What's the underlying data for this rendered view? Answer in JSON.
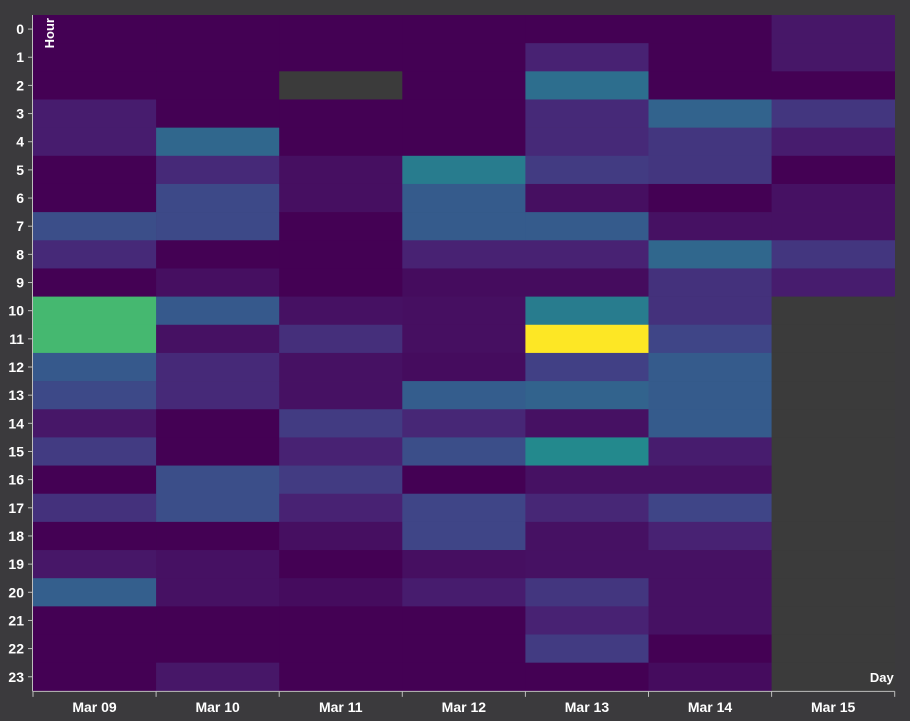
{
  "chart_data": {
    "type": "heatmap",
    "xlabel": "Day",
    "ylabel": "Hour",
    "x_categories": [
      "Mar 09",
      "Mar 10",
      "Mar 11",
      "Mar 12",
      "Mar 13",
      "Mar 14",
      "Mar 15"
    ],
    "y_categories": [
      "0",
      "1",
      "2",
      "3",
      "4",
      "5",
      "6",
      "7",
      "8",
      "9",
      "10",
      "11",
      "12",
      "13",
      "14",
      "15",
      "16",
      "17",
      "18",
      "19",
      "20",
      "21",
      "22",
      "23"
    ],
    "colorscale": "viridis",
    "value_range": [
      0,
      1
    ],
    "missing_color": "#3b3b3b",
    "background": "#3b3a3d",
    "grid": false,
    "legend": "none",
    "columns": [
      [
        0.0,
        0.0,
        0.0,
        0.1,
        0.1,
        0.0,
        0.0,
        0.3,
        0.15,
        0.0,
        0.8,
        0.8,
        0.35,
        0.28,
        0.08,
        0.22,
        0.0,
        0.18,
        0.0,
        0.08,
        0.38,
        0.0,
        0.0,
        0.0
      ],
      [
        0.0,
        0.0,
        0.0,
        0.0,
        0.42,
        0.15,
        0.28,
        0.28,
        0.0,
        0.05,
        0.35,
        0.06,
        0.15,
        0.15,
        0.0,
        0.0,
        0.3,
        0.3,
        0.0,
        0.06,
        0.06,
        0.0,
        0.0,
        0.08
      ],
      [
        0.0,
        0.0,
        null,
        0.0,
        0.0,
        0.05,
        0.05,
        0.0,
        0.0,
        0.0,
        0.06,
        0.17,
        0.06,
        0.06,
        0.22,
        0.12,
        0.22,
        0.12,
        0.05,
        0.0,
        0.04,
        0.0,
        0.0,
        0.0
      ],
      [
        0.0,
        0.0,
        0.0,
        0.0,
        0.0,
        0.52,
        0.36,
        0.36,
        0.12,
        0.04,
        0.05,
        0.05,
        0.04,
        0.37,
        0.14,
        0.3,
        0.0,
        0.26,
        0.26,
        0.05,
        0.1,
        0.0,
        0.0,
        0.0
      ],
      [
        0.0,
        0.12,
        0.45,
        0.15,
        0.15,
        0.22,
        0.05,
        0.36,
        0.12,
        0.04,
        0.52,
        1.0,
        0.24,
        0.4,
        0.06,
        0.58,
        0.06,
        0.14,
        0.06,
        0.06,
        0.2,
        0.12,
        0.22,
        0.0
      ],
      [
        0.0,
        0.0,
        0.0,
        0.4,
        0.2,
        0.2,
        0.0,
        0.06,
        0.42,
        0.18,
        0.18,
        0.26,
        0.36,
        0.36,
        0.36,
        0.1,
        0.06,
        0.26,
        0.12,
        0.06,
        0.06,
        0.06,
        0.0,
        0.04
      ],
      [
        0.08,
        0.08,
        0.0,
        0.2,
        0.1,
        0.0,
        0.06,
        0.06,
        0.2,
        0.1,
        null,
        null,
        null,
        null,
        null,
        null,
        null,
        null,
        null,
        null,
        null,
        null,
        null,
        null
      ]
    ]
  }
}
